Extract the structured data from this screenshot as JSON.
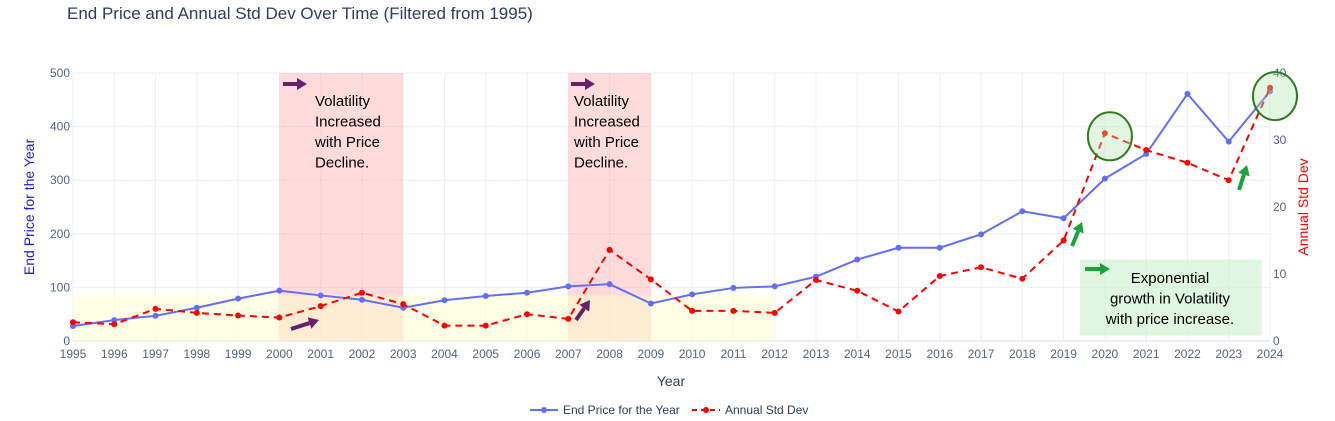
{
  "chart_data": {
    "type": "line",
    "title": "End Price and Annual Std Dev Over Time (Filtered from 1995)",
    "xlabel": "Year",
    "ylabel_left": "End Price for the Year",
    "ylabel_right": "Annual Std Dev",
    "xlim": [
      1995,
      2024
    ],
    "ylim_left": [
      0,
      500
    ],
    "ylim_right": [
      0,
      40
    ],
    "left_ticks": [
      0,
      100,
      200,
      300,
      400,
      500
    ],
    "right_ticks": [
      0,
      10,
      20,
      30,
      40
    ],
    "x_ticks": [
      1995,
      1996,
      1997,
      1998,
      1999,
      2000,
      2001,
      2002,
      2003,
      2004,
      2005,
      2006,
      2007,
      2008,
      2009,
      2010,
      2011,
      2012,
      2013,
      2014,
      2015,
      2016,
      2017,
      2018,
      2019,
      2020,
      2021,
      2022,
      2023,
      2024
    ],
    "grid": true,
    "legend_position": "bottom-center",
    "series": [
      {
        "name": "End Price for the Year",
        "axis": "left",
        "color": "#636efa",
        "style": "solid",
        "x": [
          1995,
          1996,
          1997,
          1998,
          1999,
          2000,
          2001,
          2002,
          2003,
          2004,
          2005,
          2006,
          2007,
          2008,
          2009,
          2010,
          2011,
          2012,
          2013,
          2014,
          2015,
          2016,
          2017,
          2018,
          2019,
          2020,
          2021,
          2022,
          2023,
          2024
        ],
        "values": [
          28,
          39,
          47,
          62,
          79,
          94,
          85,
          77,
          62,
          76,
          84,
          90,
          102,
          106,
          70,
          87,
          99,
          102,
          120,
          152,
          174,
          174,
          199,
          242,
          229,
          303,
          349,
          461,
          372,
          466
        ]
      },
      {
        "name": "Annual Std Dev",
        "axis": "right",
        "color": "#ff0000",
        "style": "dashed",
        "x": [
          1995,
          1996,
          1997,
          1998,
          1999,
          2000,
          2001,
          2002,
          2003,
          2004,
          2005,
          2006,
          2007,
          2008,
          2009,
          2010,
          2011,
          2012,
          2013,
          2014,
          2015,
          2016,
          2017,
          2018,
          2019,
          2020,
          2021,
          2022,
          2023,
          2024
        ],
        "values": [
          2.8,
          2.5,
          4.8,
          4.2,
          3.8,
          3.5,
          5.2,
          7.2,
          5.5,
          2.3,
          2.3,
          4.0,
          3.3,
          13.6,
          9.2,
          4.5,
          4.5,
          4.2,
          9.1,
          7.5,
          4.4,
          9.7,
          11.0,
          9.3,
          15.0,
          31.0,
          28.5,
          26.6,
          24.0,
          37.8
        ]
      }
    ],
    "shaded_regions": [
      {
        "x0": 2000,
        "x1": 2003,
        "color": "#ff9999",
        "opacity": 0.35,
        "label": "Volatility Increased with Price Decline."
      },
      {
        "x0": 2007,
        "x1": 2009,
        "color": "#ff9999",
        "opacity": 0.35,
        "label": "Volatility Increased with Price Decline."
      },
      {
        "x0": 1995,
        "x1": 2012,
        "y0": 0,
        "y1": 85,
        "color": "#ffffcc",
        "opacity": 0.5
      },
      {
        "x0": 2019.4,
        "x1": 2023.8,
        "y0": 10,
        "y1": 152,
        "color": "#ccf0cc",
        "opacity": 0.6,
        "label": "Exponential growth in Volatility with price increase."
      }
    ],
    "annotations": {
      "region1_lines": [
        "Volatility",
        "Increased",
        "with Price",
        "Decline."
      ],
      "region2_lines": [
        "Volatility",
        "Increased",
        "with Price",
        "Decline."
      ],
      "green_lines": [
        "Exponential",
        "growth in Volatility",
        "with price increase."
      ]
    },
    "highlight_circles": [
      {
        "x": 2020,
        "y_right": 31.0
      },
      {
        "x": 2024,
        "y_right": 37.0
      }
    ]
  }
}
